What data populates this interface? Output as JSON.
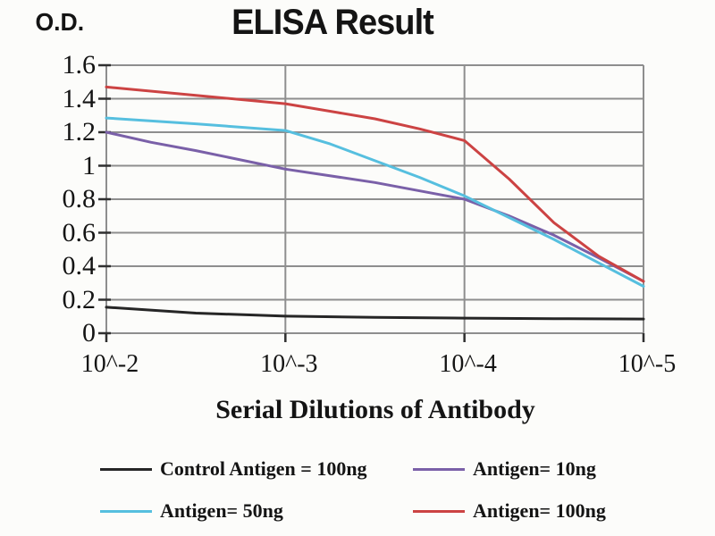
{
  "figure": {
    "title": "ELISA Result",
    "y_axis_corner_label": "O.D.",
    "x_axis_title": "Serial Dilutions of Antibody"
  },
  "style": {
    "grid_color": "#8e8e8e",
    "tick_color": "#2f2f2f",
    "text_color": "#141414",
    "background": "#fcfcfa"
  },
  "chart_data": {
    "type": "line",
    "title": "ELISA Result",
    "xlabel": "Serial Dilutions of Antibody",
    "ylabel": "O.D.",
    "grid": true,
    "legend_position": "bottom",
    "ylim": [
      0,
      1.6
    ],
    "y_tick_step": 0.2,
    "y_tick_labels": [
      "1.6",
      "1.4",
      "1.2",
      "1",
      "0.8",
      "0.6",
      "0.4",
      "0.2",
      "0"
    ],
    "x_tick_labels": [
      "10^-2",
      "10^-3",
      "10^-4",
      "10^-5"
    ],
    "series": [
      {
        "name": "Control Antigen = 100ng",
        "color": "#262626",
        "values_at_ticks": [
          0.16,
          0.1,
          0.09,
          0.085
        ],
        "curve": [
          [
            0,
            0.155
          ],
          [
            0.5,
            0.12
          ],
          [
            1,
            0.102
          ],
          [
            1.5,
            0.095
          ],
          [
            2,
            0.09
          ],
          [
            2.5,
            0.087
          ],
          [
            3,
            0.085
          ]
        ]
      },
      {
        "name": "Antigen= 10ng",
        "color": "#7a60a8",
        "values_at_ticks": [
          1.2,
          0.98,
          0.8,
          0.31
        ],
        "curve": [
          [
            0,
            1.2
          ],
          [
            0.25,
            1.14
          ],
          [
            0.5,
            1.09
          ],
          [
            1,
            0.98
          ],
          [
            1.5,
            0.9
          ],
          [
            2,
            0.8
          ],
          [
            2.25,
            0.7
          ],
          [
            2.5,
            0.585
          ],
          [
            2.75,
            0.45
          ],
          [
            3,
            0.31
          ]
        ]
      },
      {
        "name": "Antigen= 50ng",
        "color": "#56bfdf",
        "values_at_ticks": [
          1.28,
          1.21,
          0.82,
          0.28
        ],
        "curve": [
          [
            0,
            1.285
          ],
          [
            0.5,
            1.25
          ],
          [
            1,
            1.21
          ],
          [
            1.25,
            1.13
          ],
          [
            1.5,
            1.03
          ],
          [
            1.75,
            0.93
          ],
          [
            2,
            0.82
          ],
          [
            2.25,
            0.69
          ],
          [
            2.5,
            0.56
          ],
          [
            2.75,
            0.42
          ],
          [
            3,
            0.28
          ]
        ]
      },
      {
        "name": "Antigen= 100ng",
        "color": "#cc4343",
        "values_at_ticks": [
          1.47,
          1.37,
          1.15,
          0.31
        ],
        "curve": [
          [
            0,
            1.47
          ],
          [
            0.5,
            1.42
          ],
          [
            1,
            1.37
          ],
          [
            1.5,
            1.28
          ],
          [
            1.75,
            1.22
          ],
          [
            2,
            1.15
          ],
          [
            2.25,
            0.92
          ],
          [
            2.5,
            0.66
          ],
          [
            2.75,
            0.46
          ],
          [
            3,
            0.31
          ]
        ]
      }
    ]
  }
}
